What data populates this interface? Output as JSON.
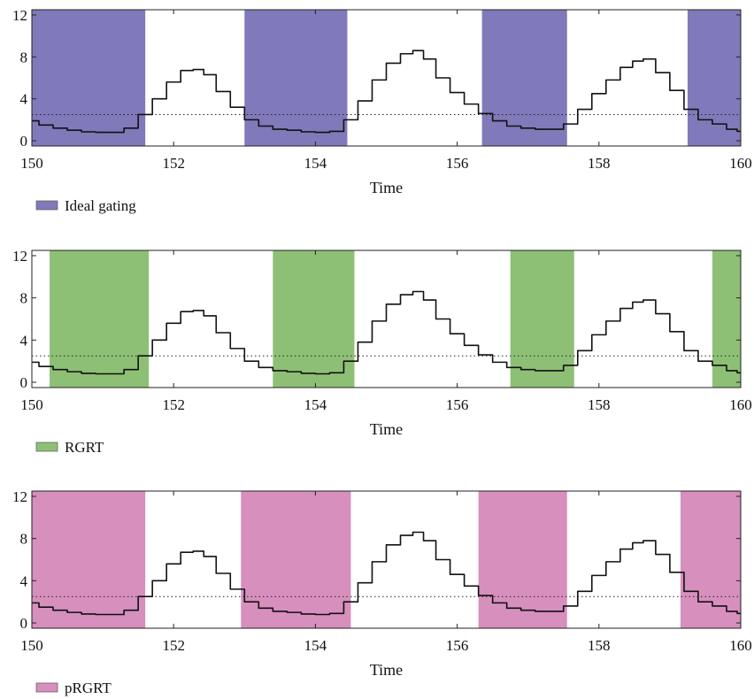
{
  "chart_data": [
    {
      "type": "area",
      "xlabel": "Time",
      "ylabel": "",
      "xlim": [
        150,
        160
      ],
      "ylim": [
        -0.5,
        12.5
      ],
      "xticks": [
        "150",
        "152",
        "154",
        "156",
        "158",
        "160"
      ],
      "yticks": [
        "0",
        "4",
        "8",
        "12"
      ],
      "threshold": 2.5,
      "gate_color": "#8079ba",
      "legend_label": "Ideal gating",
      "legend_position": "bottom-left",
      "gates": [
        [
          150.0,
          151.6
        ],
        [
          153.0,
          154.45
        ],
        [
          156.35,
          157.55
        ],
        [
          159.25,
          160.0
        ]
      ]
    },
    {
      "type": "area",
      "xlabel": "Time",
      "ylabel": "",
      "xlim": [
        150,
        160
      ],
      "ylim": [
        -0.5,
        12.5
      ],
      "xticks": [
        "150",
        "152",
        "154",
        "156",
        "158",
        "160"
      ],
      "yticks": [
        "0",
        "4",
        "8",
        "12"
      ],
      "threshold": 2.5,
      "gate_color": "#8dc075",
      "legend_label": "RGRT",
      "legend_position": "bottom-left",
      "gates": [
        [
          150.25,
          151.65
        ],
        [
          153.4,
          154.55
        ],
        [
          156.75,
          157.65
        ],
        [
          159.6,
          160.0
        ]
      ]
    },
    {
      "type": "area",
      "xlabel": "Time",
      "ylabel": "",
      "xlim": [
        150,
        160
      ],
      "ylim": [
        -0.5,
        12.5
      ],
      "xticks": [
        "150",
        "152",
        "154",
        "156",
        "158",
        "160"
      ],
      "yticks": [
        "0",
        "4",
        "8",
        "12"
      ],
      "threshold": 2.5,
      "gate_color": "#d78fbd",
      "legend_label": "pRGRT",
      "legend_position": "bottom-left",
      "gates": [
        [
          150.0,
          151.6
        ],
        [
          152.95,
          154.5
        ],
        [
          156.3,
          157.55
        ],
        [
          159.15,
          160.0
        ]
      ]
    }
  ],
  "signal": {
    "name": "",
    "x": [
      150.0,
      150.2,
      150.4,
      150.6,
      150.8,
      151.0,
      151.2,
      151.4,
      151.6,
      151.8,
      152.0,
      152.2,
      152.35,
      152.5,
      152.7,
      152.9,
      153.1,
      153.3,
      153.5,
      153.7,
      153.9,
      154.1,
      154.3,
      154.5,
      154.7,
      154.9,
      155.1,
      155.3,
      155.45,
      155.6,
      155.8,
      156.0,
      156.2,
      156.4,
      156.6,
      156.8,
      157.0,
      157.2,
      157.4,
      157.6,
      157.8,
      158.0,
      158.2,
      158.4,
      158.55,
      158.7,
      158.9,
      159.1,
      159.3,
      159.5,
      159.7,
      159.9,
      160.0
    ],
    "y": [
      1.9,
      1.5,
      1.2,
      1.0,
      0.85,
      0.8,
      0.8,
      1.2,
      2.5,
      4.0,
      5.6,
      6.7,
      6.8,
      6.3,
      4.7,
      3.2,
      2.0,
      1.4,
      1.1,
      1.0,
      0.85,
      0.8,
      0.9,
      2.0,
      3.8,
      5.8,
      7.4,
      8.3,
      8.6,
      7.8,
      6.0,
      4.6,
      3.5,
      2.6,
      1.9,
      1.4,
      1.2,
      1.1,
      1.1,
      1.6,
      3.0,
      4.5,
      5.8,
      7.0,
      7.6,
      7.8,
      6.5,
      4.8,
      3.0,
      2.0,
      1.6,
      1.1,
      0.9
    ]
  }
}
